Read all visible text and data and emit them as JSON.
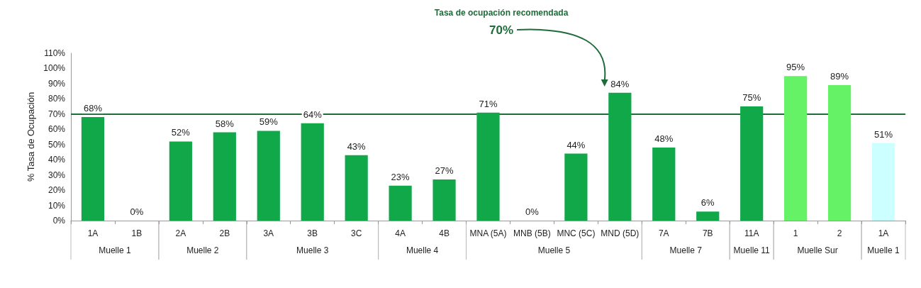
{
  "chart_data": {
    "type": "bar",
    "ylabel": "% Tasa de Ocupación",
    "categories": [
      "1A",
      "1B",
      "2A",
      "2B",
      "3A",
      "3B",
      "3C",
      "4A",
      "4B",
      "MNA (5A)",
      "MNB (5B)",
      "MNC (5C)",
      "MND (5D)",
      "7A",
      "7B",
      "11A",
      "1",
      "2",
      "1A"
    ],
    "values": [
      68,
      0,
      52,
      58,
      59,
      64,
      43,
      23,
      27,
      71,
      0,
      44,
      84,
      48,
      6,
      75,
      95,
      89,
      51
    ],
    "colors": [
      "#11a84a",
      "#11a84a",
      "#11a84a",
      "#11a84a",
      "#11a84a",
      "#11a84a",
      "#11a84a",
      "#11a84a",
      "#11a84a",
      "#11a84a",
      "#11a84a",
      "#11a84a",
      "#11a84a",
      "#11a84a",
      "#11a84a",
      "#11a84a",
      "#66f266",
      "#66f266",
      "#ccffff"
    ],
    "value_labels": [
      "68%",
      "0%",
      "52%",
      "58%",
      "59%",
      "64%",
      "43%",
      "23%",
      "27%",
      "71%",
      "0%",
      "44%",
      "84%",
      "48%",
      "6%",
      "75%",
      "95%",
      "89%",
      "51%"
    ],
    "ylim": [
      0,
      110
    ],
    "yticks": [
      {
        "value": 0,
        "label": "0%"
      },
      {
        "value": 10,
        "label": "10%"
      },
      {
        "value": 20,
        "label": "20%"
      },
      {
        "value": 30,
        "label": "30%"
      },
      {
        "value": 40,
        "label": "40%"
      },
      {
        "value": 50,
        "label": "50%"
      },
      {
        "value": 60,
        "label": "60%"
      },
      {
        "value": 70,
        "label": "70%"
      },
      {
        "value": 80,
        "label": "80%"
      },
      {
        "value": 90,
        "label": "90%"
      },
      {
        "value": 100,
        "label": "100%"
      },
      {
        "value": 110,
        "label": "110%"
      }
    ],
    "ref_lines": [
      {
        "axis": "y",
        "value": 70,
        "label": "Tasa de ocupación recomendada",
        "color": "#1f6b3a"
      }
    ],
    "annotations": [
      "70%",
      "Muelle 1",
      "Muelle 2",
      "Muelle 3",
      "Muelle 4",
      "Muelle 5",
      "Muelle 7",
      "Muelle 11",
      "Muelle Sur",
      "Muelle 1"
    ],
    "grid": false
  }
}
